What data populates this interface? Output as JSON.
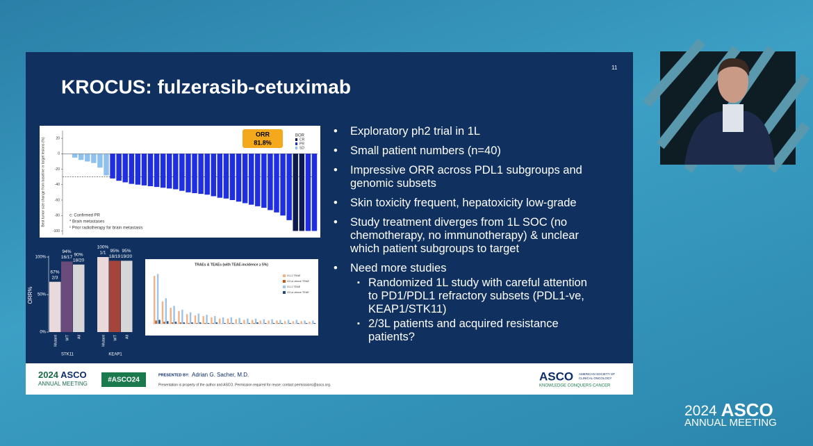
{
  "slide": {
    "title": "KROCUS: fulzerasib-cetuximab",
    "page_number": "11",
    "waterfall": {
      "type": "bar",
      "y_label": "Best tumor size change from baseline in target lesions (%)",
      "orr_label": "ORR",
      "orr_value": "81.8%",
      "legend_title": "BOR",
      "ylim": [
        -105,
        30
      ],
      "yticks": [
        -100,
        -80,
        -60,
        -40,
        -20,
        0,
        20
      ],
      "reference_line": -30,
      "series": [
        {
          "name": "CR",
          "color": "#0d1a4f",
          "values": [
            null,
            null,
            null,
            null,
            null,
            null,
            null,
            null,
            null,
            null,
            null,
            null,
            null,
            null,
            null,
            null,
            null,
            null,
            null,
            null,
            null,
            null,
            null,
            null,
            null,
            null,
            null,
            null,
            null,
            null,
            null,
            null,
            null,
            null,
            null,
            null,
            -100,
            -100,
            null,
            null
          ]
        },
        {
          "name": "PR",
          "color": "#1f2fe0",
          "values": [
            null,
            null,
            null,
            null,
            null,
            null,
            null,
            -32,
            -35,
            -37,
            -39,
            -40,
            -41,
            -42,
            -43,
            -44,
            -45,
            -46,
            -48,
            -50,
            -51,
            -52,
            -53,
            -55,
            -57,
            -58,
            -60,
            -62,
            -64,
            -66,
            -68,
            -70,
            -73,
            -76,
            -80,
            -86,
            null,
            null,
            -100,
            -100
          ]
        },
        {
          "name": "SD",
          "color": "#8fc1ee",
          "values": [
            0,
            -5,
            -8,
            -10,
            -12,
            -18,
            -28,
            null,
            null,
            null,
            null,
            null,
            null,
            null,
            null,
            null,
            null,
            null,
            null,
            null,
            null,
            null,
            null,
            null,
            null,
            null,
            null,
            null,
            null,
            null,
            null,
            null,
            null,
            null,
            null,
            null,
            null,
            null,
            null,
            null
          ]
        }
      ],
      "notes": [
        "c: Confirmed PR",
        "* Brain metastases",
        "ᶜ Prior radiotherapy for brain metastasis"
      ]
    },
    "orr_chart": {
      "type": "bar",
      "y_label": "ORR%",
      "ylim": [
        0,
        100
      ],
      "yticks": [
        {
          "value": 0,
          "label": "0%"
        },
        {
          "value": 50,
          "label": "50%"
        },
        {
          "value": 100,
          "label": "100%"
        }
      ],
      "groups": [
        {
          "name": "STK11",
          "categories": [
            "Mutant",
            "WT",
            "All"
          ],
          "colors": [
            "#ead9da",
            "#6b4a7c",
            "#d6d6d6"
          ],
          "values": [
            67,
            94,
            90
          ],
          "value_labels": [
            "67%",
            "94%",
            "90%"
          ],
          "fractions": [
            "2/3",
            "16/17",
            "18/20"
          ]
        },
        {
          "name": "KEAP1",
          "categories": [
            "Mutant",
            "WT",
            "All"
          ],
          "colors": [
            "#ead9da",
            "#a4453b",
            "#d6d6d6"
          ],
          "values": [
            100,
            95,
            95
          ],
          "value_labels": [
            "100%",
            "95%",
            "95%"
          ],
          "fractions": [
            "1/1",
            "18/19",
            "19/20"
          ]
        }
      ]
    },
    "ae_chart": {
      "type": "bar",
      "title": "TRAEs & TEAEs (with TEAE-incidence ≥ 5%)",
      "ylim": [
        0,
        85
      ],
      "series": [
        {
          "name": "G1-2 TRAE",
          "color": "#f4b183",
          "values": [
            75,
            35,
            25,
            20,
            15,
            13,
            12,
            10,
            8,
            8,
            7,
            6,
            6,
            5,
            5,
            5,
            4,
            4,
            4,
            3
          ]
        },
        {
          "name": "G3 or above TRAE",
          "color": "#c55a11",
          "values": [
            5,
            3,
            2,
            2,
            1,
            1,
            1,
            1,
            0,
            1,
            0,
            0,
            1,
            0,
            0,
            1,
            0,
            0,
            0,
            0
          ]
        },
        {
          "name": "G1-2 TEAE",
          "color": "#9dc3e6",
          "values": [
            78,
            40,
            28,
            22,
            18,
            16,
            14,
            12,
            10,
            10,
            9,
            8,
            8,
            7,
            7,
            6,
            6,
            6,
            5,
            5
          ]
        },
        {
          "name": "G3 or above TEAE",
          "color": "#1f4e79",
          "values": [
            6,
            4,
            3,
            2,
            2,
            2,
            1,
            2,
            1,
            1,
            1,
            1,
            2,
            1,
            1,
            1,
            1,
            1,
            1,
            1
          ]
        }
      ]
    },
    "bullets": [
      {
        "text": "Exploratory ph2 trial in 1L"
      },
      {
        "text": "Small patient numbers (n=40)"
      },
      {
        "text": "Impressive ORR across PDL1 subgroups and genomic subsets"
      },
      {
        "text": "Skin toxicity frequent, hepatoxicity low-grade"
      },
      {
        "text": "Study treatment diverges from 1L SOC (no chemotherapy, no immunotherapy) & unclear which patient subgroups to target"
      },
      {
        "text": "Need more studies",
        "sub": [
          "Randomized 1L study with careful attention to PD1/PDL1 refractory subsets (PDL1-ve,  KEAP1/STK11)",
          "2/3L patients and acquired resistance patients?"
        ]
      }
    ],
    "footer": {
      "meeting_year": "2024",
      "meeting_brand": "ASCO",
      "meeting_name": "ANNUAL MEETING",
      "hashtag": "#ASCO24",
      "presented_by": "PRESENTED BY:",
      "presenter": "Adrian G. Sacher, M.D.",
      "disclaimer": "Presentation is property of the author and ASCO. Permission required for reuse; contact permissions@asco.org.",
      "org_brand": "ASCO",
      "org_name_1": "AMERICAN SOCIETY OF",
      "org_name_2": "CLINICAL ONCOLOGY",
      "tagline": "KNOWLEDGE CONQUERS CANCER"
    }
  },
  "stream_logo": {
    "year": "2024",
    "brand": "ASCO",
    "name": "ANNUAL MEETING"
  }
}
